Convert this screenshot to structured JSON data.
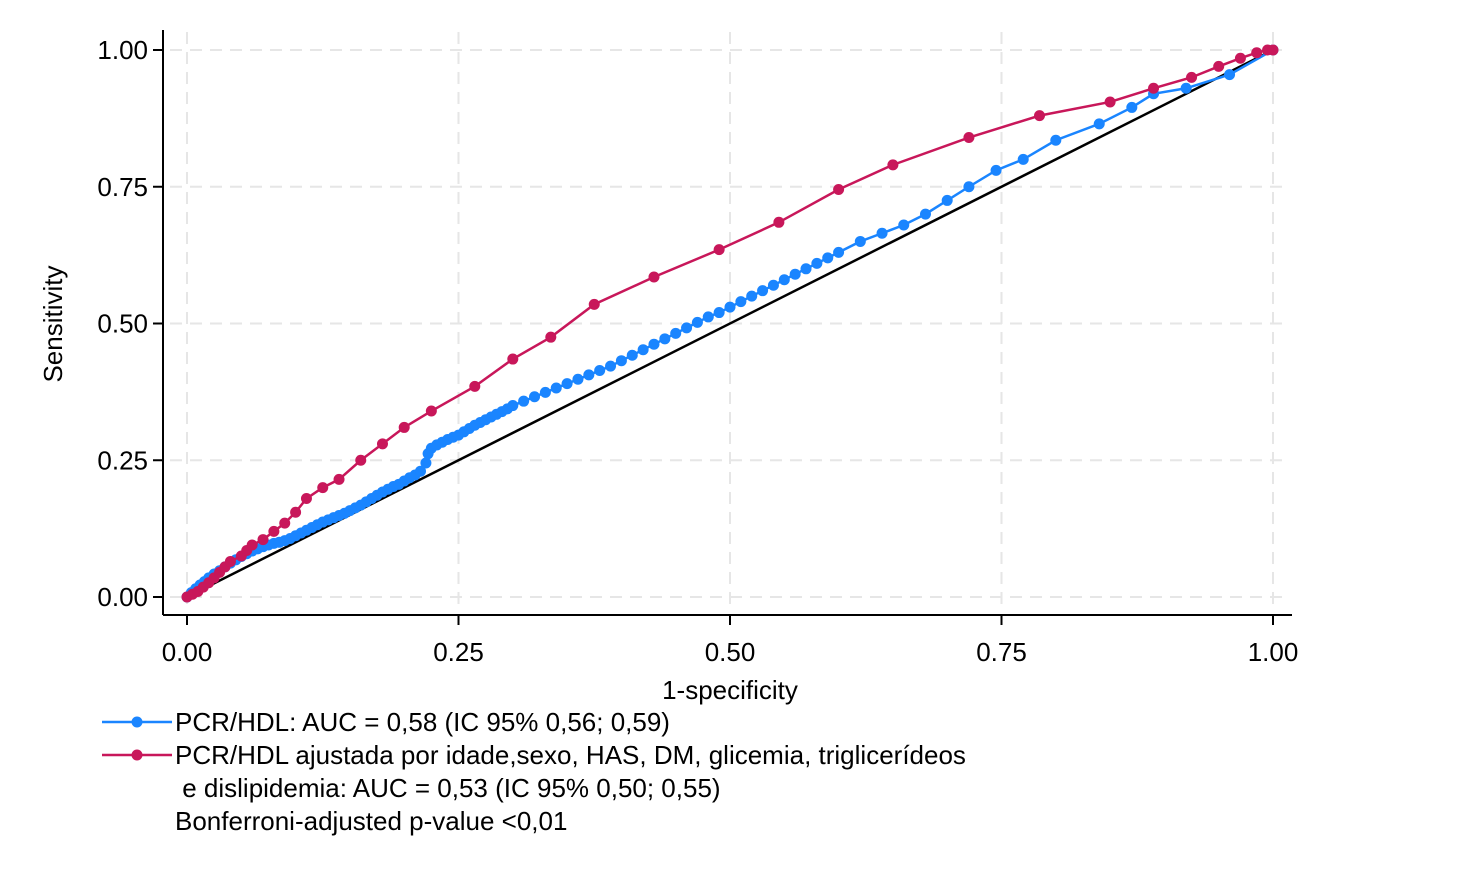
{
  "chart_data": {
    "type": "line",
    "xlabel": "1-specificity",
    "ylabel": "Sensitivity",
    "xlim": [
      0,
      1
    ],
    "ylim": [
      0,
      1
    ],
    "xticks": [
      "0.00",
      "0.25",
      "0.50",
      "0.75",
      "1.00"
    ],
    "yticks": [
      "0.00",
      "0.25",
      "0.50",
      "0.75",
      "1.00"
    ],
    "grid": true,
    "legend_position": "bottom-left",
    "reference_line": {
      "from": [
        0,
        0
      ],
      "to": [
        1,
        1
      ],
      "color": "#000000"
    },
    "series": [
      {
        "name": "PCR/HDL: AUC = 0,58 (IC 95% 0,56; 0,59)",
        "color": "#1a85ff",
        "x": [
          0.0,
          0.004,
          0.008,
          0.012,
          0.016,
          0.02,
          0.025,
          0.03,
          0.035,
          0.04,
          0.045,
          0.05,
          0.055,
          0.06,
          0.065,
          0.07,
          0.075,
          0.08,
          0.085,
          0.09,
          0.095,
          0.1,
          0.105,
          0.11,
          0.115,
          0.12,
          0.125,
          0.13,
          0.135,
          0.14,
          0.145,
          0.15,
          0.155,
          0.16,
          0.165,
          0.17,
          0.175,
          0.18,
          0.185,
          0.19,
          0.195,
          0.2,
          0.205,
          0.21,
          0.215,
          0.22,
          0.222,
          0.225,
          0.23,
          0.235,
          0.24,
          0.245,
          0.25,
          0.255,
          0.26,
          0.265,
          0.27,
          0.275,
          0.28,
          0.285,
          0.29,
          0.295,
          0.3,
          0.31,
          0.32,
          0.33,
          0.34,
          0.35,
          0.36,
          0.37,
          0.38,
          0.39,
          0.4,
          0.41,
          0.42,
          0.43,
          0.44,
          0.45,
          0.46,
          0.47,
          0.48,
          0.49,
          0.5,
          0.51,
          0.52,
          0.53,
          0.54,
          0.55,
          0.56,
          0.57,
          0.58,
          0.59,
          0.6,
          0.62,
          0.64,
          0.66,
          0.68,
          0.7,
          0.72,
          0.745,
          0.77,
          0.8,
          0.84,
          0.87,
          0.89,
          0.92,
          0.96,
          1.0
        ],
        "y": [
          0.0,
          0.008,
          0.015,
          0.022,
          0.028,
          0.035,
          0.042,
          0.048,
          0.055,
          0.062,
          0.068,
          0.074,
          0.079,
          0.084,
          0.088,
          0.092,
          0.095,
          0.098,
          0.1,
          0.103,
          0.107,
          0.112,
          0.117,
          0.122,
          0.127,
          0.132,
          0.137,
          0.141,
          0.145,
          0.149,
          0.153,
          0.158,
          0.163,
          0.168,
          0.174,
          0.18,
          0.186,
          0.192,
          0.197,
          0.202,
          0.206,
          0.212,
          0.218,
          0.223,
          0.23,
          0.245,
          0.262,
          0.272,
          0.278,
          0.283,
          0.288,
          0.292,
          0.296,
          0.302,
          0.308,
          0.314,
          0.319,
          0.324,
          0.329,
          0.334,
          0.339,
          0.344,
          0.35,
          0.358,
          0.366,
          0.374,
          0.382,
          0.39,
          0.398,
          0.406,
          0.414,
          0.422,
          0.432,
          0.442,
          0.452,
          0.462,
          0.472,
          0.482,
          0.492,
          0.502,
          0.512,
          0.52,
          0.53,
          0.54,
          0.55,
          0.56,
          0.57,
          0.58,
          0.59,
          0.6,
          0.61,
          0.62,
          0.63,
          0.65,
          0.665,
          0.68,
          0.7,
          0.725,
          0.75,
          0.78,
          0.8,
          0.835,
          0.865,
          0.895,
          0.92,
          0.93,
          0.955,
          1.0
        ]
      },
      {
        "name": "PCR/HDL ajustada por idade,sexo, HAS, DM, glicemia, triglicerídeos e dislipidemia: AUC = 0,53 (IC 95% 0,50; 0,55)",
        "color": "#c8175a",
        "x": [
          0.0,
          0.005,
          0.01,
          0.015,
          0.02,
          0.025,
          0.03,
          0.035,
          0.04,
          0.05,
          0.055,
          0.06,
          0.07,
          0.08,
          0.09,
          0.1,
          0.11,
          0.125,
          0.14,
          0.16,
          0.18,
          0.2,
          0.225,
          0.265,
          0.3,
          0.335,
          0.375,
          0.43,
          0.49,
          0.545,
          0.6,
          0.65,
          0.72,
          0.785,
          0.85,
          0.89,
          0.925,
          0.95,
          0.97,
          0.985,
          0.995,
          1.0
        ],
        "y": [
          0.0,
          0.005,
          0.01,
          0.018,
          0.026,
          0.035,
          0.045,
          0.055,
          0.065,
          0.075,
          0.085,
          0.095,
          0.105,
          0.12,
          0.135,
          0.155,
          0.18,
          0.2,
          0.215,
          0.25,
          0.28,
          0.31,
          0.34,
          0.385,
          0.435,
          0.475,
          0.535,
          0.585,
          0.635,
          0.685,
          0.745,
          0.79,
          0.84,
          0.88,
          0.905,
          0.93,
          0.95,
          0.97,
          0.985,
          0.995,
          1.0,
          1.0
        ]
      }
    ],
    "legend_extra_lines": [
      " e dislipidemia: AUC = 0,53 (IC 95% 0,50; 0,55)",
      "Bonferroni-adjusted p-value <0,01"
    ],
    "legend_first_lines": [
      "PCR/HDL: AUC = 0,58 (IC 95% 0,56; 0,59)",
      "PCR/HDL ajustada por idade,sexo, HAS, DM, glicemia, triglicerídeos"
    ]
  }
}
